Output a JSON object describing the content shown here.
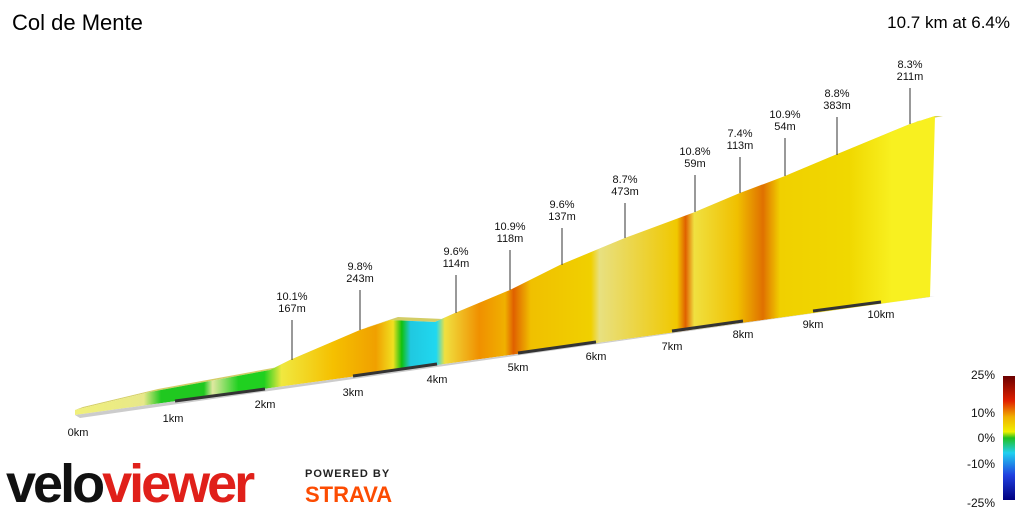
{
  "header": {
    "title": "Col de Mente",
    "summary": "10.7 km at 6.4%"
  },
  "annotations": [
    {
      "gradient": "10.1%",
      "length": "167m"
    },
    {
      "gradient": "9.8%",
      "length": "243m"
    },
    {
      "gradient": "9.6%",
      "length": "114m"
    },
    {
      "gradient": "10.9%",
      "length": "118m"
    },
    {
      "gradient": "9.6%",
      "length": "137m"
    },
    {
      "gradient": "8.7%",
      "length": "473m"
    },
    {
      "gradient": "10.8%",
      "length": "59m"
    },
    {
      "gradient": "7.4%",
      "length": "113m"
    },
    {
      "gradient": "10.9%",
      "length": "54m"
    },
    {
      "gradient": "8.8%",
      "length": "383m"
    },
    {
      "gradient": "8.3%",
      "length": "211m"
    }
  ],
  "distance_labels": [
    "0km",
    "1km",
    "2km",
    "3km",
    "4km",
    "5km",
    "6km",
    "7km",
    "8km",
    "9km",
    "10km"
  ],
  "legend": {
    "labels": [
      "25%",
      "10%",
      "0%",
      "-10%",
      "-25%"
    ]
  },
  "branding": {
    "logo": [
      "velo",
      "viewer"
    ],
    "powered_by": "POWERED BY",
    "partner": "STRAVA"
  }
}
